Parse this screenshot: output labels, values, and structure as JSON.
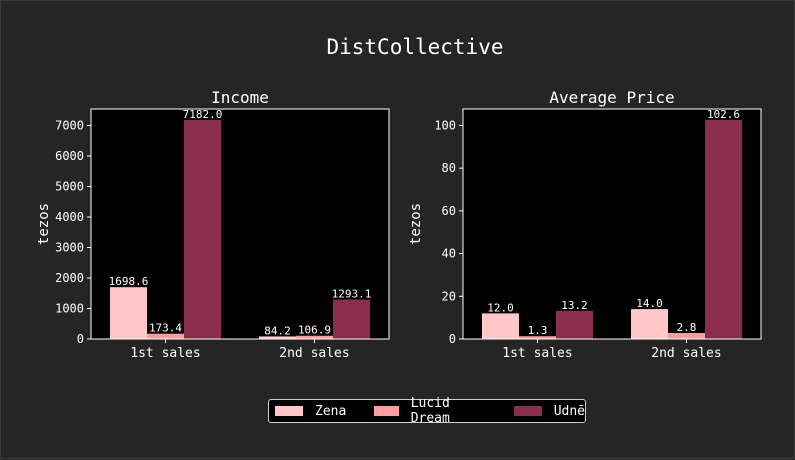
{
  "figure": {
    "title": "DistCollective"
  },
  "legend": {
    "items": [
      {
        "name": "Zena",
        "color": "#ffc7c7"
      },
      {
        "name": "Lucid Dream",
        "color": "#ff9c9c"
      },
      {
        "name": "Udnē",
        "color": "#8b2e4e"
      }
    ]
  },
  "chart_data": [
    {
      "type": "bar",
      "title": "Income",
      "xlabel": "",
      "ylabel": "tezos",
      "categories": [
        "1st sales",
        "2nd sales"
      ],
      "ylim": [
        0,
        7541
      ],
      "yticks": [
        0,
        1000,
        2000,
        3000,
        4000,
        5000,
        6000,
        7000
      ],
      "series": [
        {
          "name": "Zena",
          "color": "#ffc7c7",
          "values": [
            1698.6,
            84.2
          ],
          "labels": [
            "1698.6",
            "84.2"
          ]
        },
        {
          "name": "Lucid Dream",
          "color": "#ff9c9c",
          "values": [
            173.4,
            106.9
          ],
          "labels": [
            "173.4",
            "106.9"
          ]
        },
        {
          "name": "Udnē",
          "color": "#8b2e4e",
          "values": [
            7182.0,
            1293.1
          ],
          "labels": [
            "7182.0",
            "1293.1"
          ]
        }
      ],
      "grid": false,
      "legend": "bottom-center"
    },
    {
      "type": "bar",
      "title": "Average Price",
      "xlabel": "",
      "ylabel": "tezos",
      "categories": [
        "1st sales",
        "2nd sales"
      ],
      "ylim": [
        0,
        107.7
      ],
      "yticks": [
        0,
        20,
        40,
        60,
        80,
        100
      ],
      "series": [
        {
          "name": "Zena",
          "color": "#ffc7c7",
          "values": [
            12.0,
            14.0
          ],
          "labels": [
            "12.0",
            "14.0"
          ]
        },
        {
          "name": "Lucid Dream",
          "color": "#ff9c9c",
          "values": [
            1.3,
            2.8
          ],
          "labels": [
            "1.3",
            "2.8"
          ]
        },
        {
          "name": "Udnē",
          "color": "#8b2e4e",
          "values": [
            13.2,
            102.6
          ],
          "labels": [
            "13.2",
            "102.6"
          ]
        }
      ],
      "grid": false,
      "legend": "bottom-center"
    }
  ]
}
